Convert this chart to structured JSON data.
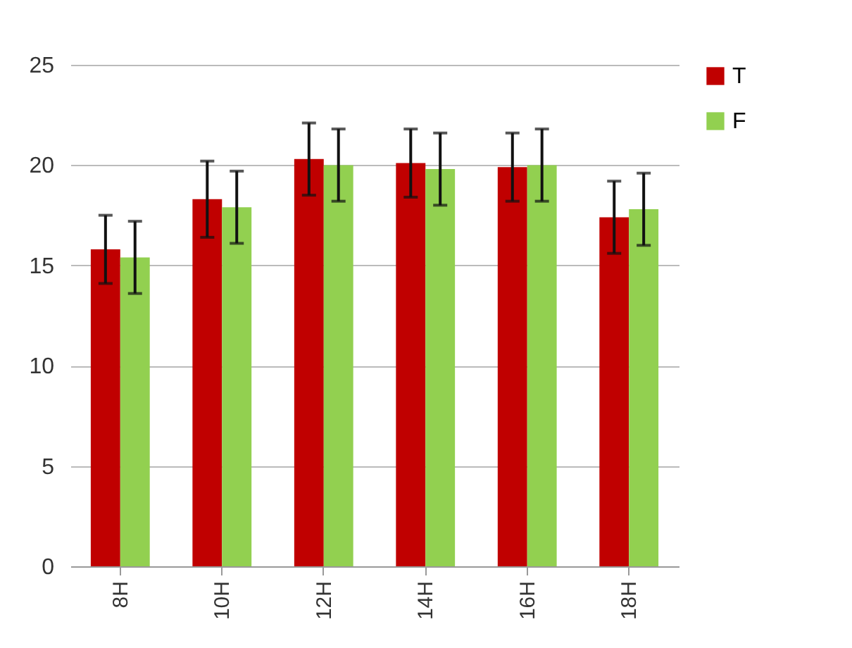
{
  "chart_data": {
    "type": "bar",
    "categories": [
      "8H",
      "10H",
      "12H",
      "14H",
      "16H",
      "18H"
    ],
    "series": [
      {
        "name": "T",
        "color": "#c00000",
        "values": [
          15.8,
          18.3,
          20.3,
          20.1,
          19.9,
          17.4
        ],
        "errors": [
          1.7,
          1.9,
          1.8,
          1.7,
          1.7,
          1.8
        ]
      },
      {
        "name": "F",
        "color": "#92d050",
        "values": [
          15.4,
          17.9,
          20.0,
          19.8,
          20.0,
          17.8
        ],
        "errors": [
          1.8,
          1.8,
          1.8,
          1.8,
          1.8,
          1.8
        ]
      }
    ],
    "ylim": [
      0,
      25
    ],
    "yticks": [
      0,
      5,
      10,
      15,
      20,
      25
    ],
    "grid": "y",
    "legend": "right"
  }
}
